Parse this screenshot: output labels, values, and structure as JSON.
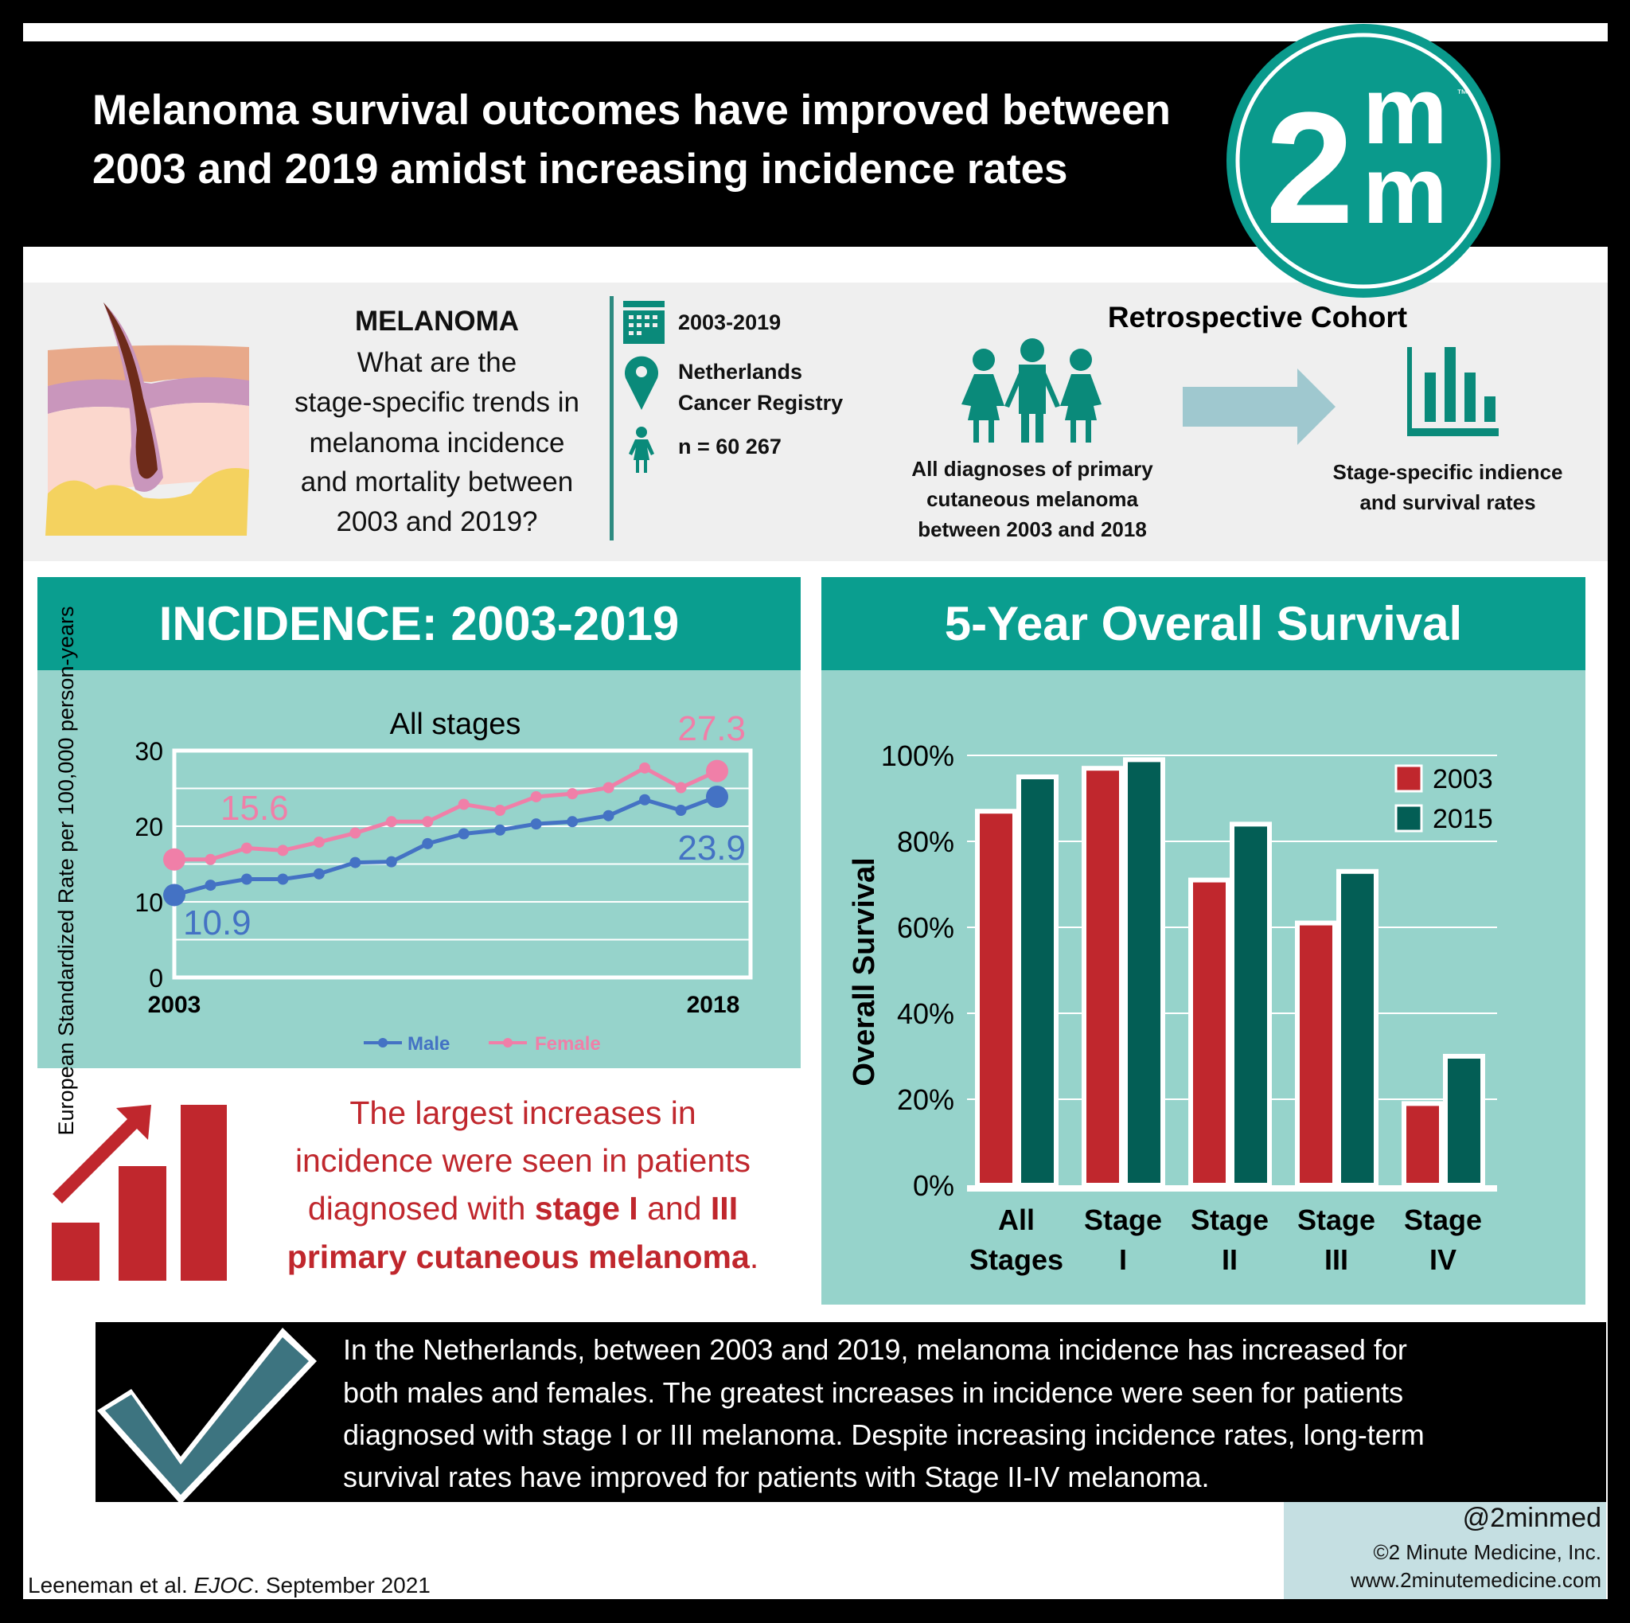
{
  "header": {
    "title_line1": "Melanoma survival outcomes have improved between",
    "title_line2": "2003 and 2019 amidst increasing incidence rates",
    "logo": "2m m",
    "logo_tm": "™"
  },
  "question": {
    "heading": "MELANOMA",
    "lines": [
      "What are the",
      "stage-specific trends in",
      "melanoma incidence",
      "and mortality between",
      "2003 and 2019?"
    ]
  },
  "study": {
    "period": "2003-2019",
    "registry_line1": "Netherlands",
    "registry_line2": "Cancer Registry",
    "n": "n = 60 267",
    "design": "Retrospective Cohort",
    "population": [
      "All diagnoses of primary",
      "cutaneous melanoma",
      "between 2003 and 2018"
    ],
    "outcome": [
      "Stage-specific indience",
      "and survival rates"
    ]
  },
  "icons": [
    "skin-hair-follicle-icon",
    "calendar-icon",
    "location-pin-icon",
    "person-icon",
    "people-group-icon",
    "arrow-right-icon",
    "bar-chart-icon",
    "rising-bar-chart-icon",
    "checkmark-icon"
  ],
  "colors": {
    "teal": "#0a9e8f",
    "panel": "#96d3cb",
    "male": "#4472c4",
    "female": "#f07fa8",
    "red": "#c0272d",
    "dark_green": "#035e55"
  },
  "incidence": {
    "header": "INCIDENCE: 2003-2019"
  },
  "survival": {
    "header": "5-Year Overall Survival"
  },
  "finding": {
    "line1": "The largest increases in",
    "line2": "incidence were seen in patients",
    "line3a": "diagnosed with ",
    "line3b": "stage I",
    "line3c": " and ",
    "line3d": "III",
    "line4a": "primary cutaneous melanoma",
    "line4b": "."
  },
  "summary": [
    "In the Netherlands, between 2003 and 2019, melanoma incidence has increased for",
    "both males and females. The greatest increases in incidence were seen for patients",
    "diagnosed with stage I or III melanoma. Despite increasing incidence rates, long-term",
    "survival rates have improved for patients with Stage II-IV melanoma."
  ],
  "footer": {
    "handle": "@2minmed",
    "copyright": "©2 Minute Medicine, Inc.",
    "website": "www.2minutemedicine.com",
    "citation_a": "Leeneman et al. ",
    "citation_journal": "EJOC",
    "citation_b": ". September 2021"
  },
  "chart_data": [
    {
      "type": "line",
      "title": "All stages",
      "ylabel": "European Standardized Rate per 100,000 person-years",
      "ylim": [
        0,
        30
      ],
      "yticks": [
        "0",
        "10",
        "20",
        "30"
      ],
      "xtick_labels": [
        "2003",
        "2018"
      ],
      "x": [
        2003,
        2004,
        2005,
        2006,
        2007,
        2008,
        2009,
        2010,
        2011,
        2012,
        2013,
        2014,
        2015,
        2016,
        2017,
        2018
      ],
      "grid": true,
      "legend": "bottom",
      "series": [
        {
          "name": "Male",
          "values": [
            10.9,
            12.2,
            13.0,
            13.0,
            13.7,
            15.2,
            15.3,
            17.7,
            19.0,
            19.5,
            20.3,
            20.6,
            21.4,
            23.5,
            22.1,
            23.9
          ],
          "labels": {
            "first": "10.9",
            "last": "23.9"
          }
        },
        {
          "name": "Female",
          "values": [
            15.6,
            15.6,
            17.1,
            16.8,
            17.9,
            19.1,
            20.6,
            20.6,
            22.9,
            22.1,
            23.9,
            24.3,
            25.1,
            27.7,
            25.1,
            27.3
          ],
          "labels": {
            "first": "15.6",
            "last": "27.3"
          }
        }
      ]
    },
    {
      "type": "bar",
      "ylabel": "Overall Survival",
      "ylim": [
        0,
        100
      ],
      "yticks": [
        "0%",
        "20%",
        "40%",
        "60%",
        "80%",
        "100%"
      ],
      "grid": true,
      "legend": "top-right",
      "categories": [
        [
          "All",
          "Stages"
        ],
        [
          "Stage",
          "I"
        ],
        [
          "Stage",
          "II"
        ],
        [
          "Stage",
          "III"
        ],
        [
          "Stage",
          "IV"
        ]
      ],
      "series": [
        {
          "name": "2003",
          "values": [
            87,
            97,
            71,
            61,
            19
          ]
        },
        {
          "name": "2015",
          "values": [
            95,
            99,
            84,
            73,
            30
          ]
        }
      ]
    }
  ]
}
